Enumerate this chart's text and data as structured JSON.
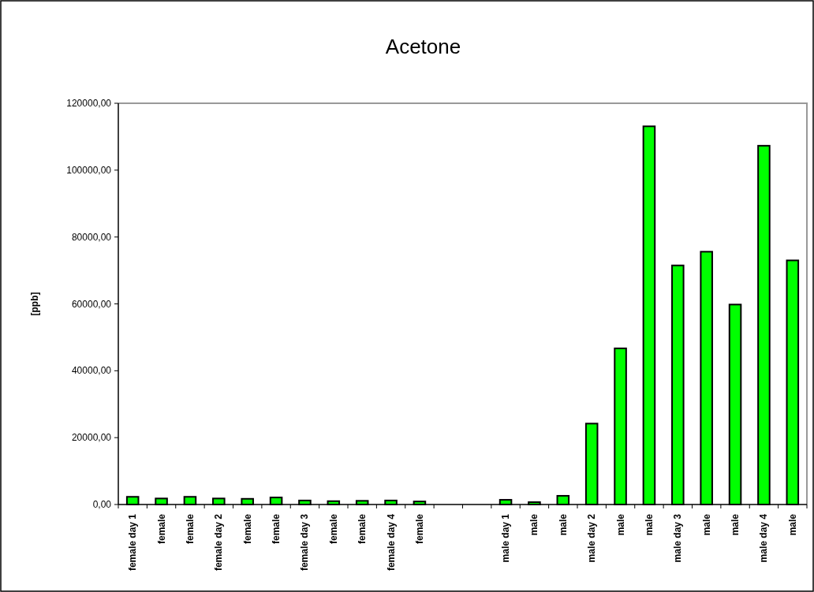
{
  "chart_data": {
    "type": "bar",
    "title": "Acetone",
    "ylabel": "[ppb]",
    "categories": [
      "female day 1",
      "female",
      "female",
      "female day 2",
      "female",
      "female",
      "female day 3",
      "female",
      "female",
      "female day 4",
      "female",
      null,
      null,
      "male day 1",
      "male",
      "male",
      "male day 2",
      "male",
      "male",
      "male day 3",
      "male",
      "male",
      "male day 4",
      "male"
    ],
    "values": [
      2300,
      1800,
      2300,
      1800,
      1700,
      2100,
      1200,
      1000,
      1100,
      1200,
      900,
      null,
      null,
      1400,
      700,
      2600,
      24200,
      46700,
      113100,
      71500,
      75600,
      59800,
      107300,
      73000
    ],
    "color": "#00ff00",
    "ylim": [
      0,
      120000
    ],
    "yticks": [
      {
        "value": 0,
        "label": "0,00"
      },
      {
        "value": 20000,
        "label": "20000,00"
      },
      {
        "value": 40000,
        "label": "40000,00"
      },
      {
        "value": 60000,
        "label": "60000,00"
      },
      {
        "value": 80000,
        "label": "80000,00"
      },
      {
        "value": 100000,
        "label": "100000,00"
      },
      {
        "value": 120000,
        "label": "120000,00"
      }
    ]
  }
}
